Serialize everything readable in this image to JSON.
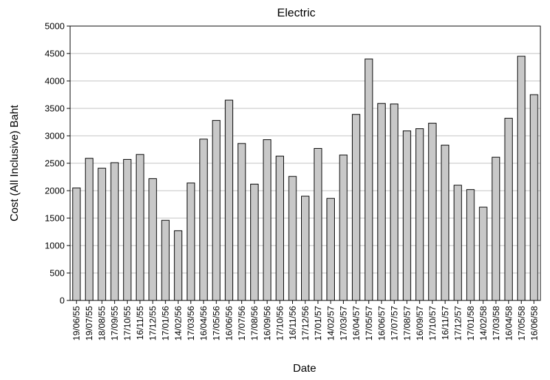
{
  "chart_data": {
    "type": "bar",
    "title": "Electric",
    "xlabel": "Date",
    "ylabel": "Cost (All Inclusive) Baht",
    "ylim": [
      0,
      5000
    ],
    "yticks": [
      0,
      500,
      1000,
      1500,
      2000,
      2500,
      3000,
      3500,
      4000,
      4500,
      5000
    ],
    "grid": true,
    "legend": "none",
    "categories": [
      "19/06/55",
      "19/07/55",
      "18/08/55",
      "17/09/55",
      "17/10/55",
      "16/11/55",
      "17/12/55",
      "17/01/56",
      "14/02/56",
      "17/03/56",
      "16/04/56",
      "17/05/56",
      "16/06/56",
      "17/07/56",
      "17/08/56",
      "16/09/56",
      "17/10/56",
      "16/11/56",
      "17/12/56",
      "17/01/57",
      "14/02/57",
      "17/03/57",
      "16/04/57",
      "17/05/57",
      "16/06/57",
      "17/07/57",
      "17/08/57",
      "16/09/57",
      "17/10/57",
      "16/11/57",
      "17/12/57",
      "17/01/58",
      "14/02/58",
      "17/03/58",
      "16/04/58",
      "17/05/58",
      "16/06/58"
    ],
    "values": [
      2050,
      2590,
      2410,
      2510,
      2570,
      2660,
      2220,
      1460,
      1270,
      2140,
      2940,
      3280,
      3650,
      2860,
      2120,
      2930,
      2630,
      2260,
      1900,
      2770,
      1860,
      2650,
      3390,
      4400,
      3590,
      3580,
      3090,
      3130,
      3230,
      2830,
      2100,
      2020,
      1700,
      2610,
      3320,
      4450,
      3750
    ],
    "bar_color": "#c8c8c8",
    "bar_edge_color": "#000000",
    "grid_color": "#c0c0c0"
  }
}
